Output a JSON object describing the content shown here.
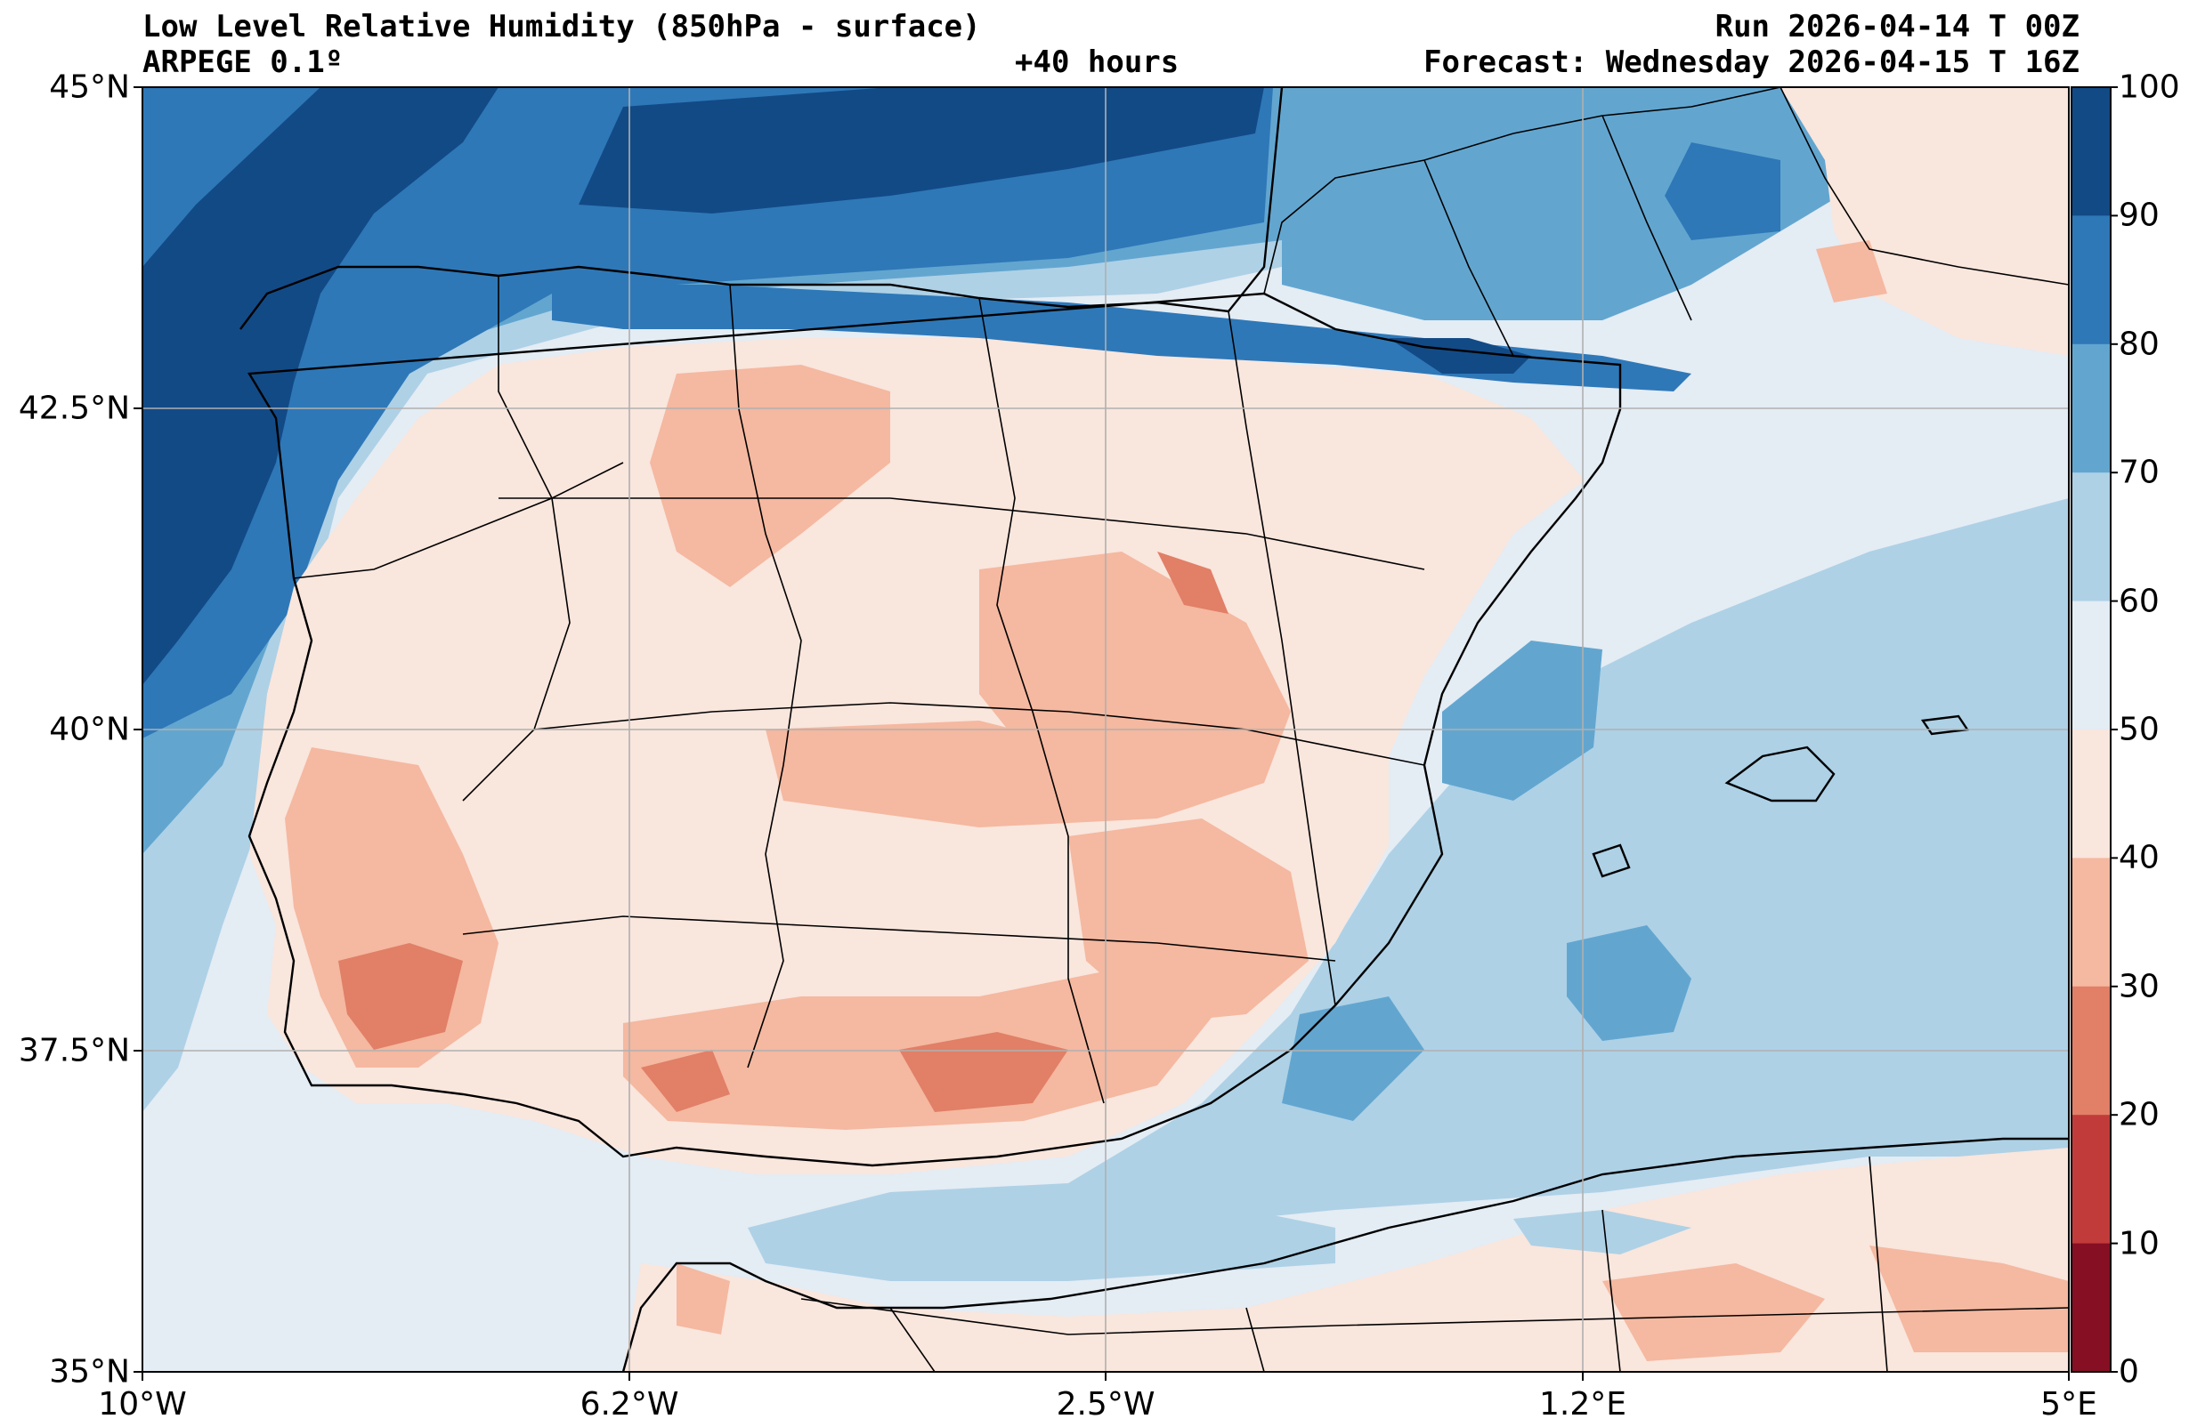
{
  "header": {
    "title": "Low Level Relative Humidity (850hPa - surface)",
    "model": "ARPEGE 0.1º",
    "lead_time": "+40 hours",
    "run": "Run 2026-04-14 T 00Z",
    "forecast": "Forecast: Wednesday 2026-04-15 T 16Z"
  },
  "map": {
    "lat_labels": [
      "45°N",
      "42.5°N",
      "40°N",
      "37.5°N",
      "35°N"
    ],
    "lon_labels": [
      "10°W",
      "6.2°W",
      "2.5°W",
      "1.2°E",
      "5°E"
    ],
    "lat_range": [
      35,
      45
    ],
    "lon_range": [
      -10,
      5
    ]
  },
  "colorbar": {
    "ticks": [
      "100",
      "90",
      "80",
      "70",
      "60",
      "50",
      "40",
      "30",
      "20",
      "10",
      "0"
    ],
    "colors": [
      "#124a86",
      "#2e78b8",
      "#62a6d0",
      "#aed1e6",
      "#e4ecf4",
      "#f9e6dd",
      "#f5b8a0",
      "#e17f67",
      "#c23b3b",
      "#860f24"
    ]
  },
  "colors": {
    "sea_default": "#e4ecf4",
    "land_default": "#f9e6dd",
    "grid": "#b0b0b0",
    "coast": "#000000"
  }
}
